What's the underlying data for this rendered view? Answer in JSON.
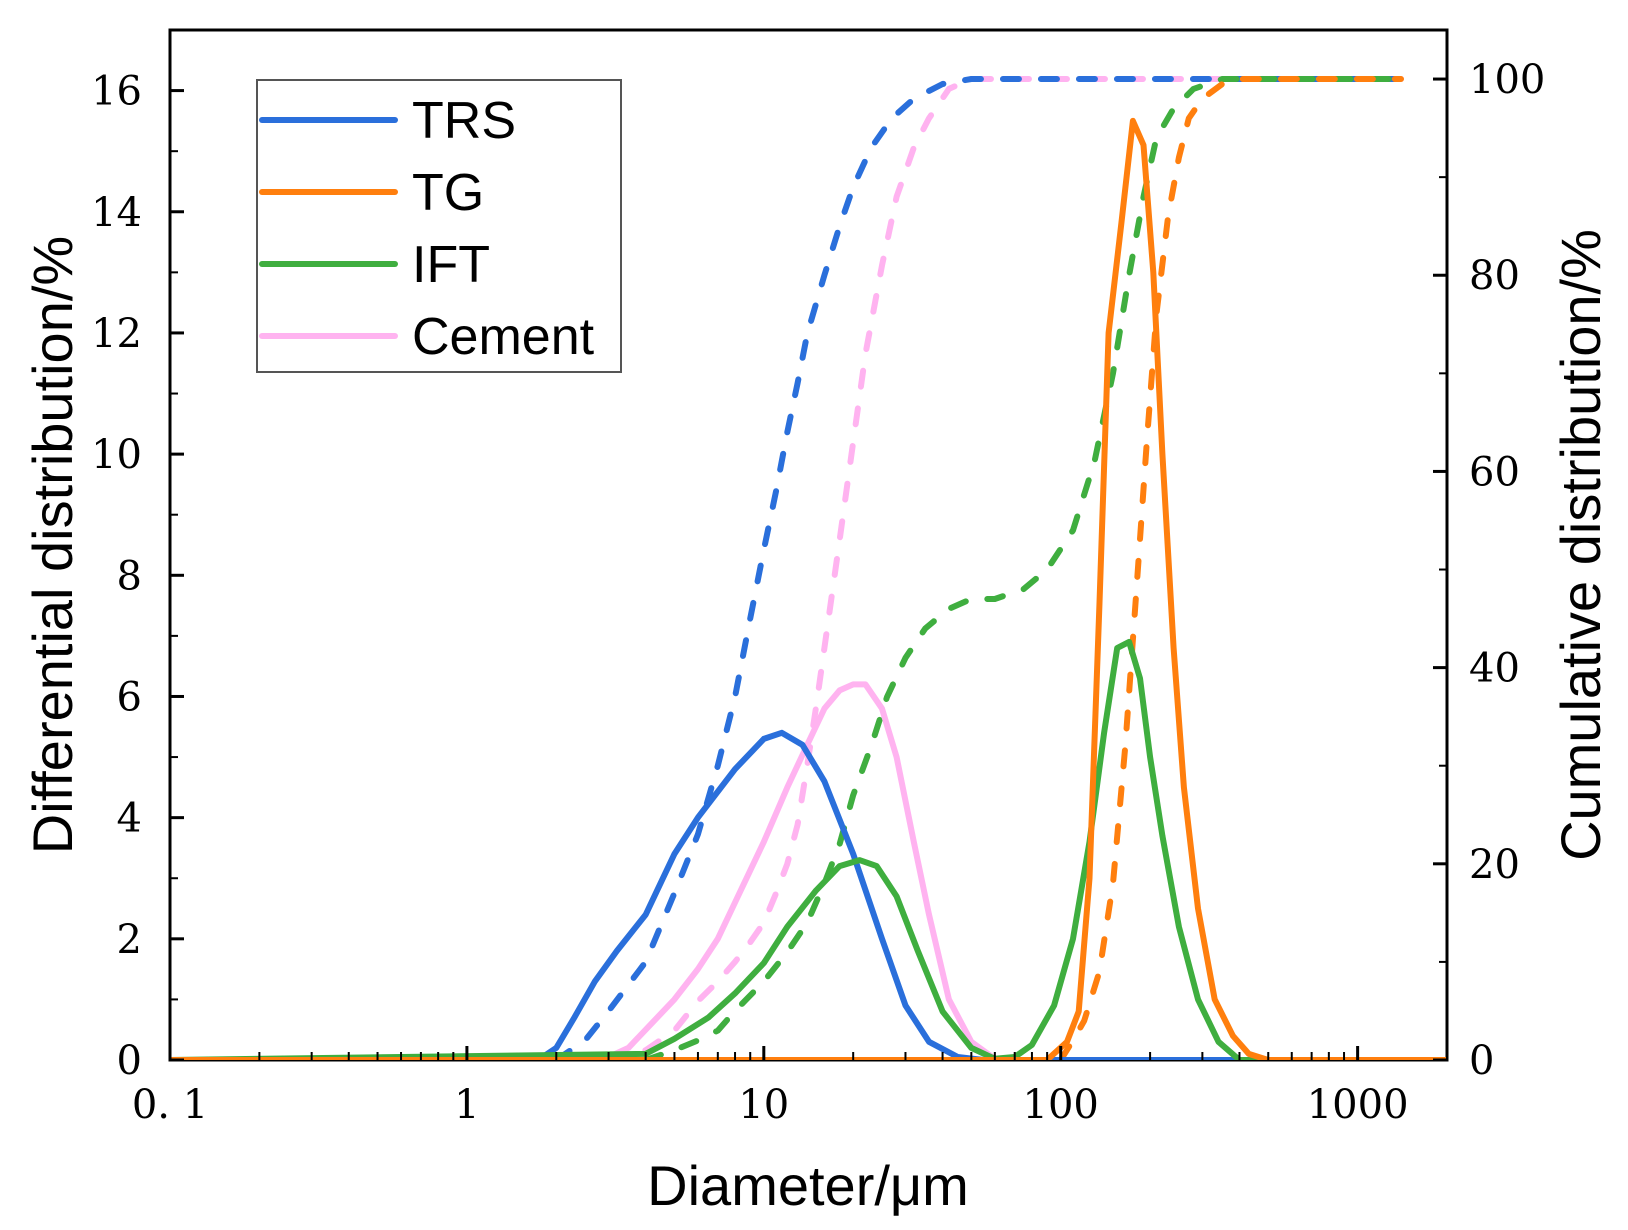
{
  "chart_data": {
    "type": "line",
    "title": "",
    "xlabel": "Diameter/μm",
    "ylabel_left": "Differential distribution/%",
    "ylabel_right": "Cumulative distribution/%",
    "x_scale": "log",
    "xlim": [
      0.1,
      2000
    ],
    "ylim_left": [
      0,
      17
    ],
    "ylim_right": [
      0,
      105
    ],
    "x_ticks": [
      {
        "value": 0.1,
        "label": "0. 1"
      },
      {
        "value": 1,
        "label": "1"
      },
      {
        "value": 10,
        "label": "10"
      },
      {
        "value": 100,
        "label": "100"
      },
      {
        "value": 1000,
        "label": "1000"
      }
    ],
    "y_left_ticks": [
      "0",
      "2",
      "4",
      "6",
      "8",
      "10",
      "12",
      "14",
      "16"
    ],
    "y_right_ticks": [
      "0",
      "20",
      "40",
      "60",
      "80",
      "100"
    ],
    "legend": {
      "placement": "top-left",
      "entries": [
        "TRS",
        "TG",
        "IFT",
        "Cement"
      ]
    },
    "series": [
      {
        "name": "TRS",
        "color": "#2a6fdb",
        "differential": {
          "x": [
            0.1,
            1.5,
            1.8,
            2.0,
            2.3,
            2.7,
            3.2,
            4.0,
            5.0,
            6.0,
            8.0,
            10.0,
            11.5,
            13.5,
            16.0,
            20.0,
            25.0,
            30.0,
            36.0,
            45.0,
            55.0,
            70.0,
            2000
          ],
          "y": [
            0,
            0,
            0.05,
            0.2,
            0.7,
            1.3,
            1.8,
            2.4,
            3.4,
            4.0,
            4.8,
            5.3,
            5.4,
            5.2,
            4.6,
            3.4,
            2.0,
            0.9,
            0.3,
            0.05,
            0,
            0,
            0
          ]
        },
        "cumulative": {
          "x": [
            2.0,
            2.5,
            3.0,
            4.0,
            5.0,
            6.0,
            7.0,
            8.0,
            9.0,
            10.0,
            11.0,
            12.0,
            13.0,
            14.0,
            16.0,
            18.0,
            20.0,
            23.0,
            27.0,
            32.0,
            40.0,
            50.0,
            1400
          ],
          "y": [
            0,
            2,
            5,
            10,
            17,
            23,
            30,
            37,
            45,
            52,
            58,
            64,
            69,
            74,
            80,
            85,
            89,
            93,
            96,
            98,
            99.5,
            100,
            100
          ]
        }
      },
      {
        "name": "TG",
        "color": "#ff7f0e",
        "differential": {
          "x": [
            0.1,
            90,
            105,
            115,
            125,
            135,
            145,
            160,
            175,
            190,
            205,
            220,
            240,
            260,
            290,
            330,
            380,
            430,
            500,
            2000
          ],
          "y": [
            0,
            0,
            0.3,
            0.8,
            3.0,
            7.5,
            12.0,
            13.8,
            15.5,
            15.1,
            13.0,
            10.0,
            6.8,
            4.5,
            2.5,
            1.0,
            0.4,
            0.1,
            0,
            0
          ]
        },
        "cumulative": {
          "x": [
            100,
            110,
            120,
            135,
            150,
            165,
            180,
            195,
            210,
            230,
            250,
            270,
            300,
            350,
            400,
            500,
            700,
            1000,
            1400
          ],
          "y": [
            0,
            2,
            4,
            9,
            18,
            32,
            48,
            63,
            76,
            86,
            92,
            96,
            98,
            99.5,
            100,
            100,
            100,
            100,
            100
          ]
        }
      },
      {
        "name": "IFT",
        "color": "#3fae3f",
        "differential": {
          "x": [
            0.1,
            4.0,
            5.0,
            6.5,
            8.0,
            10.0,
            12.0,
            15.0,
            18.0,
            21.0,
            24.0,
            28.0,
            33.0,
            40.0,
            50.0,
            60.0,
            70.0,
            80.0,
            95.0,
            110.0,
            125.0,
            140.0,
            155.0,
            170.0,
            185.0,
            200.0,
            220.0,
            250.0,
            290.0,
            340.0,
            400.0,
            2000
          ],
          "y": [
            0,
            0.1,
            0.35,
            0.7,
            1.1,
            1.6,
            2.2,
            2.8,
            3.2,
            3.3,
            3.2,
            2.7,
            1.8,
            0.8,
            0.2,
            0.02,
            0.05,
            0.25,
            0.9,
            2.0,
            3.6,
            5.4,
            6.8,
            6.9,
            6.3,
            5.0,
            3.7,
            2.2,
            1.0,
            0.3,
            0,
            0
          ]
        },
        "cumulative": {
          "x": [
            4.0,
            5.0,
            6.0,
            7.0,
            8.0,
            10.0,
            12.0,
            14.0,
            16.0,
            18.0,
            20.0,
            23.0,
            26.0,
            30.0,
            35.0,
            42.0,
            50.0,
            60.0,
            75.0,
            90.0,
            110.0,
            130.0,
            150.0,
            170.0,
            190.0,
            210.0,
            240.0,
            280.0,
            350.0,
            500.0,
            800.0,
            1400.0
          ],
          "y": [
            0,
            1,
            2,
            3,
            5,
            8,
            11,
            14,
            18,
            22,
            27,
            32,
            37,
            41,
            44,
            46,
            47,
            47,
            48,
            50,
            54,
            61,
            70,
            80,
            88,
            94,
            97,
            99,
            100,
            100,
            100,
            100
          ]
        }
      },
      {
        "name": "Cement",
        "color": "#ffb3f0",
        "differential": {
          "x": [
            0.1,
            2.5,
            3.0,
            3.5,
            4.0,
            5.0,
            6.0,
            7.0,
            8.0,
            10.0,
            12.0,
            14.0,
            16.0,
            18.0,
            20.0,
            22.0,
            25.0,
            28.0,
            32.0,
            36.0,
            42.0,
            50.0,
            60.0,
            70.0,
            2000
          ],
          "y": [
            0,
            0,
            0.05,
            0.2,
            0.5,
            1.0,
            1.5,
            2.0,
            2.6,
            3.6,
            4.5,
            5.2,
            5.8,
            6.1,
            6.2,
            6.2,
            5.8,
            5.0,
            3.6,
            2.4,
            1.0,
            0.3,
            0.02,
            0,
            0
          ]
        },
        "cumulative": {
          "x": [
            3.0,
            4.0,
            5.0,
            6.0,
            7.0,
            8.0,
            9.0,
            10.0,
            11.0,
            12.0,
            13.0,
            14.0,
            15.0,
            16.0,
            18.0,
            20.0,
            22.0,
            25.0,
            28.0,
            32.0,
            36.0,
            42.0,
            50.0,
            60.0,
            80.0,
            1400.0
          ],
          "y": [
            0,
            1,
            3,
            6,
            8,
            10,
            12,
            14,
            17,
            20,
            24,
            30,
            36,
            42,
            53,
            63,
            72,
            81,
            88,
            93,
            96,
            99,
            100,
            100,
            100,
            100
          ]
        }
      }
    ]
  }
}
